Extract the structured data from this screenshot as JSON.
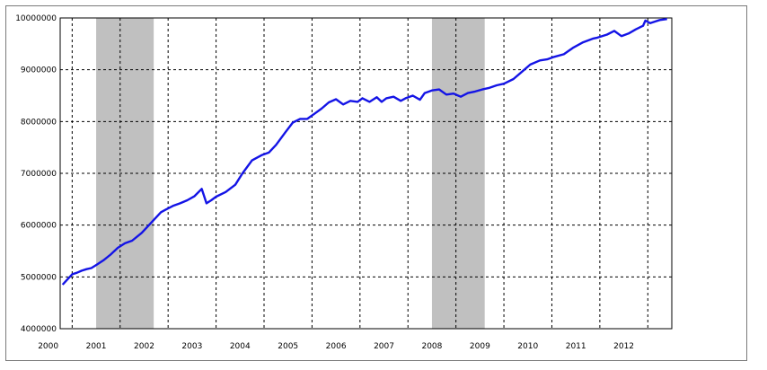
{
  "chart_data": {
    "type": "line",
    "title": "",
    "xlabel": "",
    "ylabel": "",
    "x_tick_labels": [
      "2000",
      "2001",
      "2002",
      "2003",
      "2004",
      "2005",
      "2006",
      "2007",
      "2008",
      "2009",
      "2010",
      "2011",
      "2012"
    ],
    "y_tick_labels": [
      "4000000",
      "5000000",
      "6000000",
      "7000000",
      "8000000",
      "9000000",
      "10000000"
    ],
    "xlim": [
      1999.8,
      2012.55
    ],
    "ylim": [
      4000000,
      10000000
    ],
    "grid": true,
    "shaded_periods": [
      [
        2000.55,
        2001.75
      ],
      [
        2007.55,
        2008.65
      ]
    ],
    "colors": {
      "line": "#1414e6",
      "shade": "#c0c0c0",
      "grid": "#000000"
    },
    "series": [
      {
        "x": [
          1999.85,
          1999.95,
          2000.05,
          2000.15,
          2000.25,
          2000.35,
          2000.45,
          2000.55,
          2000.7,
          2000.85,
          2001.0,
          2001.15,
          2001.3,
          2001.5,
          2001.7,
          2001.9,
          2002.0,
          2002.15,
          2002.3,
          2002.45,
          2002.6,
          2002.75,
          2002.85,
          2002.95,
          2003.05,
          2003.25,
          2003.45,
          2003.6,
          2003.8,
          2004.0,
          2004.15,
          2004.3,
          2004.5,
          2004.65,
          2004.8,
          2004.95,
          2005.1,
          2005.25,
          2005.4,
          2005.55,
          2005.7,
          2005.85,
          2006.0,
          2006.1,
          2006.25,
          2006.4,
          2006.5,
          2006.6,
          2006.75,
          2006.9,
          2007.0,
          2007.15,
          2007.3,
          2007.4,
          2007.55,
          2007.7,
          2007.85,
          2008.0,
          2008.15,
          2008.3,
          2008.45,
          2008.6,
          2008.75,
          2008.9,
          2009.05,
          2009.25,
          2009.45,
          2009.6,
          2009.8,
          2009.95,
          2010.1,
          2010.3,
          2010.5,
          2010.7,
          2010.9,
          2011.0,
          2011.2,
          2011.35,
          2011.5,
          2011.65,
          2011.8,
          2011.95,
          2012.0,
          2012.1,
          2012.2,
          2012.3,
          2012.45
        ],
        "y": [
          4850000,
          4950000,
          5050000,
          5080000,
          5120000,
          5150000,
          5170000,
          5230000,
          5320000,
          5430000,
          5560000,
          5650000,
          5700000,
          5850000,
          6050000,
          6250000,
          6300000,
          6370000,
          6420000,
          6480000,
          6560000,
          6700000,
          6420000,
          6480000,
          6550000,
          6640000,
          6780000,
          7000000,
          7250000,
          7350000,
          7400000,
          7550000,
          7800000,
          7980000,
          8050000,
          8050000,
          8150000,
          8250000,
          8370000,
          8430000,
          8330000,
          8400000,
          8380000,
          8450000,
          8380000,
          8470000,
          8380000,
          8450000,
          8480000,
          8400000,
          8450000,
          8500000,
          8420000,
          8550000,
          8600000,
          8620000,
          8520000,
          8540000,
          8480000,
          8550000,
          8580000,
          8620000,
          8650000,
          8700000,
          8730000,
          8820000,
          8980000,
          9100000,
          9180000,
          9200000,
          9250000,
          9300000,
          9430000,
          9530000,
          9600000,
          9620000,
          9680000,
          9750000,
          9650000,
          9700000,
          9780000,
          9850000,
          9950000,
          9900000,
          9930000,
          9960000,
          9980000
        ]
      }
    ]
  }
}
